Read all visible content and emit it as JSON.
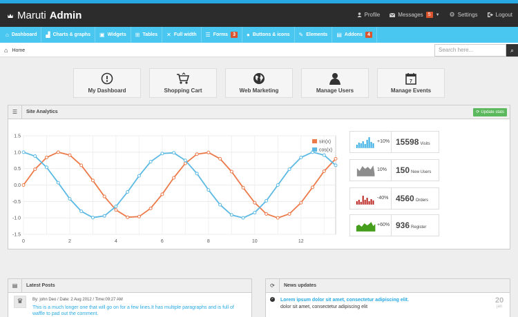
{
  "brand": {
    "name_light": "Maruti",
    "name_bold": "Admin"
  },
  "top_nav": {
    "profile": "Profile",
    "messages": "Messages",
    "messages_count": "5",
    "settings": "Settings",
    "logout": "Logout"
  },
  "main_nav": [
    {
      "label": "Dashboard",
      "icon": "home-icon"
    },
    {
      "label": "Charts & graphs",
      "icon": "bar-chart-icon"
    },
    {
      "label": "Widgets",
      "icon": "widgets-icon"
    },
    {
      "label": "Tables",
      "icon": "table-icon"
    },
    {
      "label": "Full width",
      "icon": "resize-icon"
    },
    {
      "label": "Forms",
      "icon": "list-icon",
      "badge": "3"
    },
    {
      "label": "Buttons & icons",
      "icon": "tint-icon"
    },
    {
      "label": "Elements",
      "icon": "pencil-icon"
    },
    {
      "label": "Addons",
      "icon": "file-icon",
      "badge": "4"
    }
  ],
  "breadcrumb": {
    "home": "Home"
  },
  "search": {
    "placeholder": "Search here..."
  },
  "quick_actions": [
    {
      "label": "My Dashboard",
      "icon": "dashboard-icon"
    },
    {
      "label": "Shopping Cart",
      "icon": "shopping-cart-icon"
    },
    {
      "label": "Web Marketing",
      "icon": "globe-icon"
    },
    {
      "label": "Manage Users",
      "icon": "user-icon"
    },
    {
      "label": "Manage Events",
      "icon": "calendar-icon"
    }
  ],
  "analytics": {
    "title": "Site Analytics",
    "update_button": "Update stats",
    "calendar_day": "7"
  },
  "stats": [
    {
      "pct": "+10%",
      "value": "15598",
      "label": "Visits",
      "color": "#2eaae3"
    },
    {
      "pct": "10%",
      "value": "150",
      "label": "New Users",
      "color": "#8d8d8d"
    },
    {
      "pct": "-40%",
      "value": "4560",
      "label": "Orders",
      "color": "#b81d18"
    },
    {
      "pct": "+60%",
      "value": "936",
      "label": "Register",
      "color": "#459d1c"
    }
  ],
  "latest_posts": {
    "title": "Latest Posts",
    "meta": "By: john Deo / Date: 2 Aug 2012 / Time:09:27 AM",
    "text": "This is a much longer one that will go on for a few lines.It has multiple paragraphs and is full of waffle to pad out the comment."
  },
  "news": {
    "title": "News updates",
    "headline": "Lorem ipsum dolor sit amet, consectetur adipiscing elit.",
    "sub": "dolor sit amet, consectetur adipiscing elit",
    "day": "20",
    "month": "jan"
  },
  "chart_data": {
    "type": "line",
    "title": "",
    "xlim": [
      0,
      13.5
    ],
    "ylim": [
      -1.5,
      1.5
    ],
    "x_ticks": [
      "0",
      "2",
      "4",
      "6",
      "8",
      "10",
      "12"
    ],
    "y_ticks": [
      "1.5",
      "1.0",
      "0.5",
      "0.0",
      "-0.5",
      "-1.0",
      "-1.5"
    ],
    "legend_position": "top-right",
    "grid": true,
    "x": [
      0,
      0.5,
      1,
      1.5,
      2,
      2.5,
      3,
      3.5,
      4,
      4.5,
      5,
      5.5,
      6,
      6.5,
      7,
      7.5,
      8,
      8.5,
      9,
      9.5,
      10,
      10.5,
      11,
      11.5,
      12,
      12.5,
      13,
      13.5
    ],
    "series": [
      {
        "name": "sin(x)",
        "color": "#ed7949",
        "values": [
          0.0,
          0.48,
          0.84,
          1.0,
          0.91,
          0.6,
          0.14,
          -0.35,
          -0.76,
          -0.98,
          -0.96,
          -0.71,
          -0.28,
          0.22,
          0.66,
          0.94,
          0.99,
          0.8,
          0.41,
          -0.08,
          -0.54,
          -0.88,
          -1.0,
          -0.88,
          -0.54,
          -0.07,
          0.42,
          0.8
        ]
      },
      {
        "name": "cos(x)",
        "color": "#5bb9e4",
        "values": [
          1.0,
          0.88,
          0.54,
          0.07,
          -0.42,
          -0.8,
          -0.99,
          -0.94,
          -0.65,
          -0.21,
          0.28,
          0.71,
          0.96,
          0.98,
          0.75,
          0.35,
          -0.15,
          -0.6,
          -0.91,
          -1.0,
          -0.84,
          -0.48,
          0.0,
          0.48,
          0.84,
          1.0,
          0.91,
          0.6
        ]
      }
    ]
  }
}
